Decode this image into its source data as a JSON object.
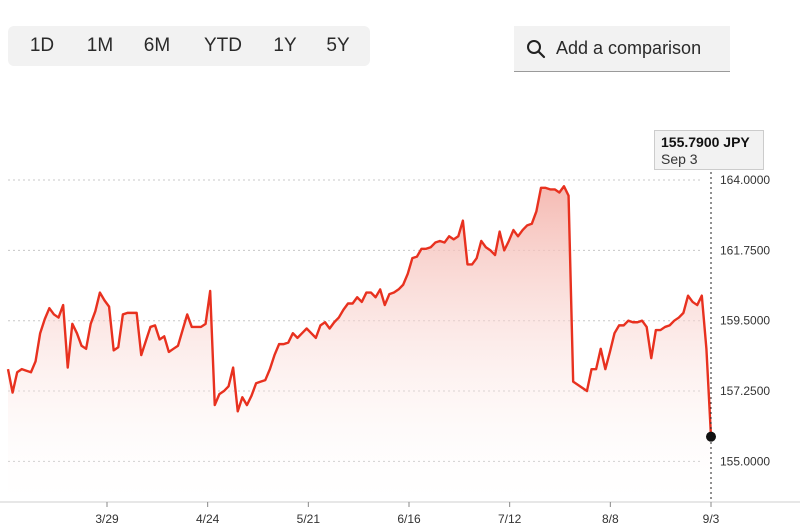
{
  "range_selector": {
    "tabs": [
      {
        "label": "1D",
        "active": false
      },
      {
        "label": "1M",
        "active": false
      },
      {
        "label": "6M",
        "active": true
      },
      {
        "label": "YTD",
        "active": false
      },
      {
        "label": "1Y",
        "active": false
      },
      {
        "label": "5Y",
        "active": false
      }
    ]
  },
  "comparison": {
    "placeholder": "Add a comparison",
    "icon": "search-icon"
  },
  "tooltip": {
    "value": "155.7900 JPY",
    "date": "Sep 3"
  },
  "colors": {
    "line": "#e8311f",
    "area_top": "#f4b3ab",
    "grid": "#c8c8c8",
    "marker": "#111111"
  },
  "chart_data": {
    "type": "area",
    "title": "",
    "xlabel": "",
    "ylabel": "",
    "ylim": [
      153.7,
      165.6
    ],
    "y_ticks": [
      "164.0000",
      "161.7500",
      "159.5000",
      "157.2500",
      "155.0000"
    ],
    "x_ticks": [
      "3/29",
      "4/24",
      "5/21",
      "6/16",
      "7/12",
      "8/8",
      "9/3"
    ],
    "grid": "horizontal-dotted",
    "last_point": {
      "date": "Sep 3",
      "value": 155.79
    },
    "series": [
      {
        "values": [
          157.95,
          157.2,
          157.85,
          157.95,
          157.9,
          157.85,
          158.2,
          159.1,
          159.55,
          159.9,
          159.7,
          159.6,
          160.0,
          158.0,
          159.4,
          159.1,
          158.7,
          158.6,
          159.4,
          159.8,
          160.4,
          160.15,
          159.95,
          158.55,
          158.65,
          159.7,
          159.75,
          159.75,
          159.75,
          158.4,
          158.85,
          159.3,
          159.35,
          158.9,
          159.0,
          158.5,
          158.6,
          158.7,
          159.2,
          159.7,
          159.3,
          159.3,
          159.3,
          159.4,
          160.45,
          156.8,
          157.15,
          157.25,
          157.4,
          158.0,
          156.6,
          157.05,
          156.8,
          157.1,
          157.5,
          157.55,
          157.6,
          157.95,
          158.4,
          158.75,
          158.75,
          158.8,
          159.1,
          158.95,
          159.1,
          159.25,
          159.1,
          158.95,
          159.35,
          159.45,
          159.25,
          159.45,
          159.6,
          159.85,
          160.05,
          160.05,
          160.25,
          160.1,
          160.4,
          160.4,
          160.25,
          160.5,
          160.0,
          160.35,
          160.4,
          160.5,
          160.65,
          161.0,
          161.5,
          161.55,
          161.8,
          161.8,
          161.85,
          162.0,
          162.05,
          162.0,
          162.2,
          162.1,
          162.2,
          162.7,
          161.3,
          161.3,
          161.5,
          162.05,
          161.85,
          161.75,
          161.6,
          162.35,
          161.75,
          162.05,
          162.4,
          162.2,
          162.4,
          162.55,
          162.6,
          163.0,
          163.75,
          163.75,
          163.7,
          163.7,
          163.6,
          163.8,
          163.5,
          157.55,
          157.45,
          157.35,
          157.25,
          157.95,
          157.95,
          158.6,
          157.95,
          158.5,
          159.1,
          159.35,
          159.35,
          159.5,
          159.45,
          159.45,
          159.5,
          159.3,
          158.3,
          159.2,
          159.2,
          159.3,
          159.35,
          159.5,
          159.6,
          159.75,
          160.3,
          160.1,
          160.0,
          160.3,
          158.6,
          155.79
        ]
      }
    ]
  }
}
